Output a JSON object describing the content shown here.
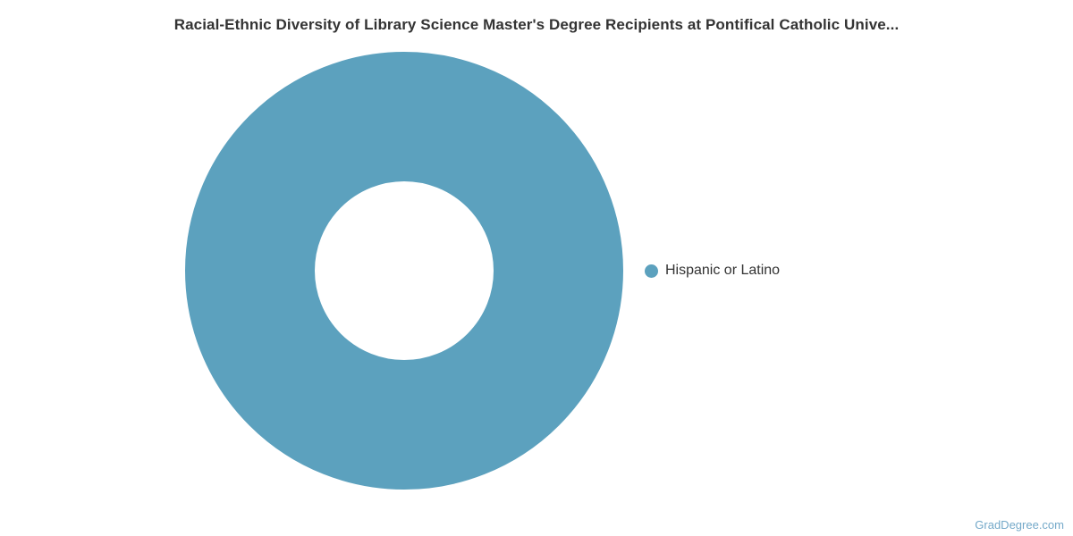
{
  "page": {
    "watermark": "GradDegree.com"
  },
  "colors": {
    "series": [
      "#5ca1be"
    ],
    "title_text": "#333333",
    "legend_text": "#333333",
    "watermark_text": "#74a9c9",
    "background": "#ffffff"
  },
  "legend": {
    "position": "right",
    "items": [
      {
        "label": "Hispanic or Latino",
        "color": "#5ca1be"
      }
    ]
  },
  "chart_data": {
    "type": "pie",
    "donut": true,
    "title": "Racial-Ethnic Diversity of Library Science Master's Degree Recipients at Pontifical Catholic Unive...",
    "categories": [
      "Hispanic or Latino"
    ],
    "values": [
      100
    ],
    "unit": "percent",
    "colors": [
      "#5ca1be"
    ],
    "legend_position": "right",
    "outer_radius_px": 245,
    "inner_radius_px": 100,
    "grid": false
  }
}
